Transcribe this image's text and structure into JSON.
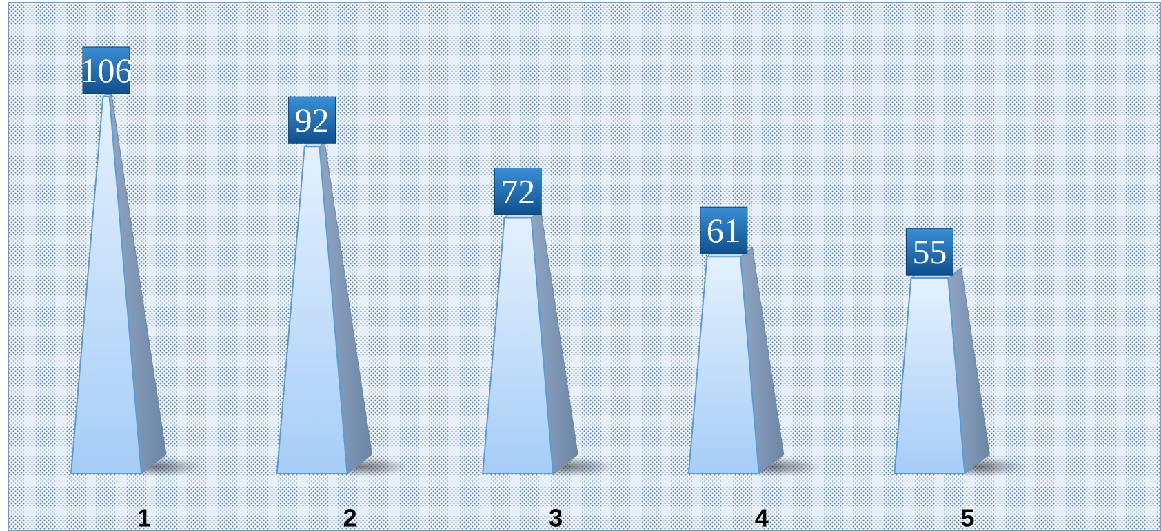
{
  "chart_data": {
    "type": "pyramid_bar",
    "categories": [
      "1",
      "2",
      "3",
      "4",
      "5"
    ],
    "values": [
      106,
      92,
      72,
      61,
      55
    ],
    "color": "#a6cdf7"
  }
}
